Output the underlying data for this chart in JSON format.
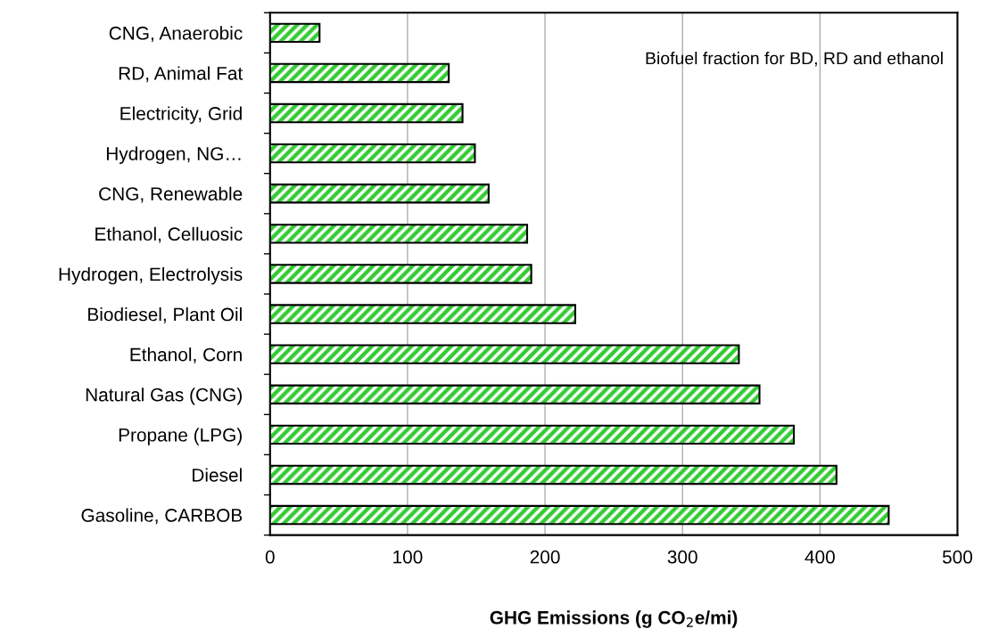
{
  "chart_data": {
    "type": "bar",
    "orientation": "horizontal",
    "xlabel": "GHG Emissions (g CO$_{2}$e/mi)",
    "categories": [
      "CNG, Anaerobic",
      "RD, Animal Fat",
      "Electricity, Grid",
      "Hydrogen, NG…",
      "CNG, Renewable",
      "Ethanol, Celluosic",
      "Hydrogen, Electrolysis",
      "Biodiesel, Plant Oil",
      "Ethanol, Corn",
      "Natural Gas (CNG)",
      "Propane (LPG)",
      "Diesel",
      "Gasoline, CARBOB"
    ],
    "values": [
      36,
      130,
      140,
      149,
      159,
      187,
      190,
      222,
      341,
      356,
      381,
      412,
      450
    ],
    "color": "#33cc33",
    "xlim": [
      0,
      500
    ],
    "xticks": [
      0,
      100,
      200,
      300,
      400,
      500
    ],
    "grid": "x",
    "legend": false,
    "annotations": [
      "Biofuel fraction for BD, RD and ethanol"
    ]
  }
}
